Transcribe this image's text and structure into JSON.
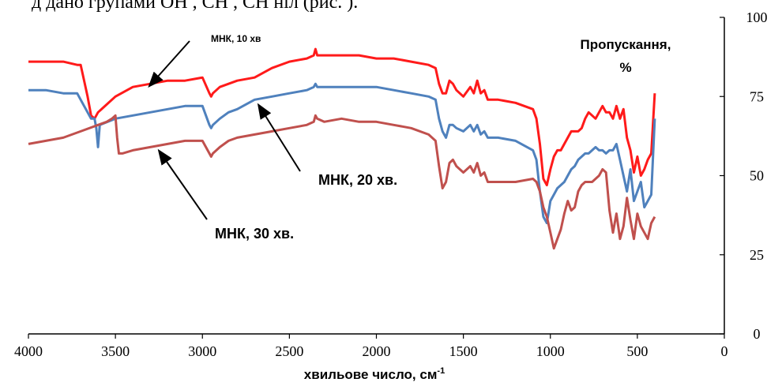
{
  "header_fragment": "д   дано  групами  ОН , СН , СН     ніл  (рис.  ).",
  "chart_data": {
    "type": "line",
    "xlabel": "хвильове число, см",
    "xlabel_sup": "-1",
    "ylabel_line1": "Пропускання,",
    "ylabel_line2": "%",
    "xlim": [
      4000,
      0
    ],
    "ylim": [
      0,
      100
    ],
    "x_ticks": [
      4000,
      3500,
      3000,
      2500,
      2000,
      1500,
      1000,
      500,
      0
    ],
    "y_ticks": [
      0,
      25,
      50,
      75,
      100
    ],
    "y_axis_position": "right",
    "grid": false,
    "series": [
      {
        "name": "МНК, 10 хв",
        "color": "#ff1a1a",
        "x": [
          4000,
          3900,
          3800,
          3720,
          3700,
          3680,
          3660,
          3640,
          3620,
          3600,
          3500,
          3400,
          3300,
          3200,
          3100,
          3000,
          2960,
          2950,
          2940,
          2900,
          2850,
          2800,
          2700,
          2600,
          2500,
          2400,
          2360,
          2350,
          2340,
          2300,
          2200,
          2100,
          2000,
          1900,
          1800,
          1700,
          1660,
          1640,
          1620,
          1600,
          1580,
          1560,
          1540,
          1500,
          1460,
          1440,
          1420,
          1400,
          1380,
          1360,
          1300,
          1200,
          1100,
          1080,
          1060,
          1040,
          1020,
          1000,
          980,
          960,
          940,
          920,
          900,
          880,
          860,
          840,
          820,
          800,
          780,
          760,
          740,
          720,
          700,
          680,
          660,
          640,
          620,
          600,
          580,
          560,
          540,
          520,
          500,
          480,
          460,
          440,
          420,
          400
        ],
        "y": [
          86,
          86,
          86,
          85,
          85,
          80,
          75,
          69,
          68,
          70,
          75,
          78,
          79,
          80,
          80,
          81,
          76,
          75,
          76,
          78,
          79,
          80,
          81,
          84,
          86,
          87,
          88,
          90,
          88,
          88,
          88,
          88,
          87,
          87,
          86,
          85,
          84,
          79,
          76,
          76,
          80,
          79,
          77,
          75,
          78,
          76,
          80,
          76,
          77,
          74,
          74,
          73,
          71,
          68,
          60,
          49,
          47,
          52,
          56,
          58,
          58,
          60,
          62,
          64,
          64,
          64,
          65,
          68,
          70,
          69,
          68,
          70,
          72,
          70,
          70,
          68,
          72,
          68,
          71,
          62,
          58,
          51,
          56,
          50,
          52,
          55,
          57,
          76
        ]
      },
      {
        "name": "МНК, 20 хв.",
        "color": "#4f81bd",
        "x": [
          4000,
          3900,
          3800,
          3720,
          3700,
          3680,
          3660,
          3640,
          3620,
          3610,
          3600,
          3590,
          3500,
          3400,
          3300,
          3200,
          3100,
          3000,
          2960,
          2950,
          2940,
          2900,
          2850,
          2800,
          2700,
          2600,
          2500,
          2400,
          2360,
          2350,
          2340,
          2300,
          2200,
          2100,
          2000,
          1900,
          1800,
          1700,
          1660,
          1640,
          1620,
          1600,
          1580,
          1560,
          1540,
          1500,
          1460,
          1440,
          1420,
          1400,
          1380,
          1360,
          1300,
          1200,
          1100,
          1080,
          1060,
          1040,
          1020,
          1000,
          980,
          960,
          940,
          920,
          900,
          880,
          860,
          840,
          820,
          800,
          780,
          760,
          740,
          720,
          700,
          680,
          660,
          640,
          620,
          600,
          580,
          560,
          540,
          520,
          500,
          480,
          460,
          440,
          420,
          400
        ],
        "y": [
          77,
          77,
          76,
          76,
          74,
          72,
          70,
          68,
          68,
          65,
          59,
          66,
          68,
          69,
          70,
          71,
          72,
          72,
          66,
          65,
          66,
          68,
          70,
          71,
          74,
          75,
          76,
          77,
          78,
          79,
          78,
          78,
          78,
          78,
          78,
          77,
          76,
          75,
          74,
          68,
          64,
          62,
          66,
          66,
          65,
          64,
          66,
          64,
          66,
          63,
          64,
          62,
          62,
          61,
          58,
          55,
          45,
          37,
          35,
          42,
          44,
          46,
          47,
          48,
          50,
          52,
          53,
          55,
          56,
          57,
          57,
          58,
          59,
          58,
          58,
          57,
          58,
          58,
          60,
          55,
          50,
          45,
          52,
          42,
          45,
          48,
          40,
          42,
          44,
          68
        ]
      },
      {
        "name": "МНК, 30 хв.",
        "color": "#c0504d",
        "x": [
          4000,
          3900,
          3800,
          3700,
          3600,
          3550,
          3520,
          3500,
          3490,
          3480,
          3460,
          3400,
          3300,
          3200,
          3100,
          3000,
          2960,
          2950,
          2940,
          2900,
          2850,
          2800,
          2700,
          2600,
          2500,
          2400,
          2360,
          2350,
          2340,
          2300,
          2200,
          2100,
          2000,
          1900,
          1800,
          1700,
          1660,
          1640,
          1620,
          1600,
          1580,
          1560,
          1540,
          1500,
          1460,
          1440,
          1420,
          1400,
          1380,
          1360,
          1300,
          1200,
          1100,
          1080,
          1060,
          1040,
          1020,
          1000,
          980,
          960,
          940,
          920,
          900,
          880,
          860,
          840,
          820,
          800,
          780,
          760,
          740,
          720,
          700,
          680,
          660,
          640,
          620,
          600,
          580,
          560,
          540,
          520,
          500,
          480,
          460,
          440,
          420,
          400
        ],
        "y": [
          60,
          61,
          62,
          64,
          66,
          67,
          68,
          69,
          62,
          57,
          57,
          58,
          59,
          60,
          61,
          61,
          57,
          56,
          57,
          59,
          61,
          62,
          63,
          64,
          65,
          66,
          67,
          69,
          68,
          67,
          68,
          67,
          67,
          66,
          65,
          63,
          61,
          53,
          46,
          48,
          54,
          55,
          53,
          51,
          53,
          51,
          54,
          50,
          51,
          48,
          48,
          48,
          49,
          48,
          45,
          40,
          37,
          32,
          27,
          30,
          33,
          38,
          42,
          39,
          40,
          45,
          47,
          48,
          48,
          48,
          49,
          50,
          52,
          51,
          39,
          32,
          38,
          30,
          34,
          43,
          36,
          30,
          38,
          34,
          32,
          30,
          35,
          37
        ]
      }
    ],
    "annotations": [
      {
        "text": "МНК, 10 хв",
        "series": 0
      },
      {
        "text": "МНК, 20 хв.",
        "series": 1
      },
      {
        "text": "МНК, 30 хв.",
        "series": 2
      }
    ]
  }
}
